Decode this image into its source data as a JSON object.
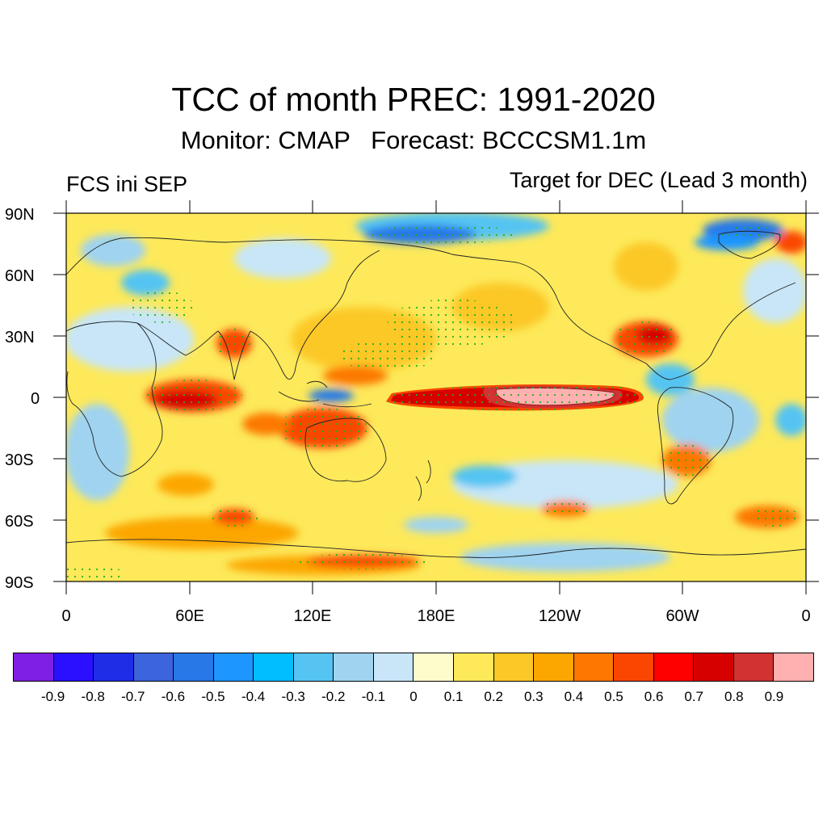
{
  "title": "TCC of month PREC: 1991-2020",
  "subtitle": "Monitor: CMAP   Forecast: BCCCSM1.1m",
  "left_label": "FCS ini SEP",
  "right_label": "Target for DEC (Lead 3 month)",
  "map": {
    "lat_labels": [
      "90N",
      "60N",
      "30N",
      "0",
      "30S",
      "60S",
      "90S"
    ],
    "lon_labels": [
      "0",
      "60E",
      "120E",
      "180E",
      "120W",
      "60W",
      "0"
    ],
    "lat_range": [
      -90,
      90
    ],
    "lon_range": [
      0,
      360
    ],
    "projection": "cylindrical-equidistant",
    "stipple_color": "#22b022",
    "coastline_color": "#222222"
  },
  "colorbar": {
    "colors": [
      "#7f1fe6",
      "#2a10ff",
      "#1e2ee6",
      "#3c64dc",
      "#2878e8",
      "#1e96ff",
      "#00beff",
      "#55c4f2",
      "#9fd3f0",
      "#c8e6f8",
      "#fffccc",
      "#fde95a",
      "#fcc828",
      "#fca600",
      "#fc7800",
      "#fa4600",
      "#ff0000",
      "#d60000",
      "#d23232",
      "#ffb0b0"
    ],
    "labels": [
      "-0.9",
      "-0.8",
      "-0.7",
      "-0.6",
      "-0.5",
      "-0.4",
      "-0.3",
      "-0.2",
      "-0.1",
      "0",
      "0.1",
      "0.2",
      "0.3",
      "0.4",
      "0.5",
      "0.6",
      "0.7",
      "0.8",
      "0.9"
    ]
  }
}
